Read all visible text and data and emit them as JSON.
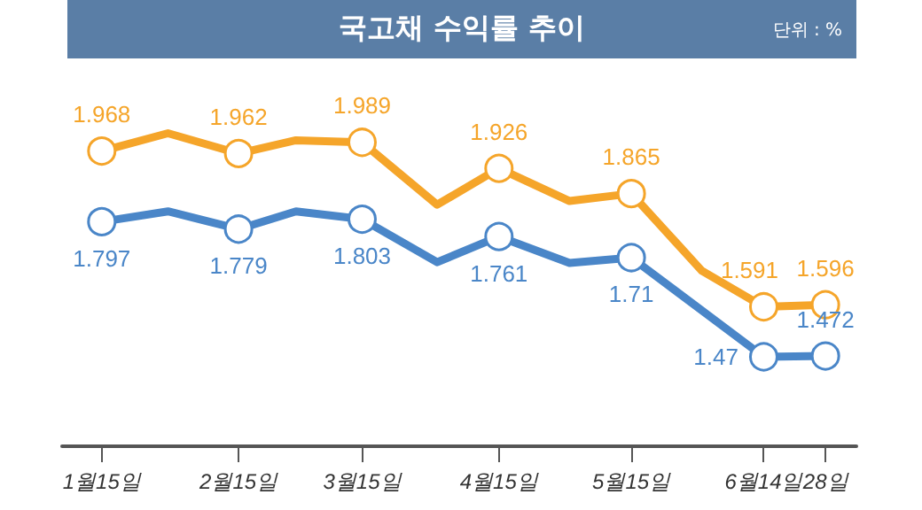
{
  "chart_data": {
    "type": "line",
    "title": "국고채 수익률 추이",
    "annotations": [
      "단위 : %"
    ],
    "x": [
      "--01-15",
      "--01-30",
      "--02-15",
      "--02-28",
      "--03-15",
      "--04-01",
      "--04-15",
      "--05-01",
      "--05-15",
      "--05-31",
      "--06-14",
      "--06-28"
    ],
    "xlim": [
      "--01-06",
      "--07-05"
    ],
    "xticks": [
      {
        "value": "--01-15",
        "label": "1월15일"
      },
      {
        "value": "--02-15",
        "label": "2월15일"
      },
      {
        "value": "--03-15",
        "label": "3월15일"
      },
      {
        "value": "--04-15",
        "label": "4월15일"
      },
      {
        "value": "--05-15",
        "label": "5월15일"
      },
      {
        "value": "--06-14",
        "label": "6월14일"
      },
      {
        "value": "--06-28",
        "label": "28일"
      }
    ],
    "tick_labels": "x",
    "grid": false,
    "marker": "circle",
    "line_style": "solid",
    "series": [
      {
        "color": "#f5a52a",
        "values": [
          1.968,
          2.011,
          1.962,
          1.994,
          1.989,
          1.838,
          1.926,
          1.847,
          1.865,
          1.678,
          1.591,
          1.596
        ],
        "value_labels": [
          "1.968",
          null,
          "1.962",
          null,
          "1.989",
          null,
          "1.926",
          null,
          "1.865",
          null,
          "1.591",
          "1.596"
        ]
      },
      {
        "color": "#4a86c8",
        "x": [
          "--01-15",
          "--01-30",
          "--02-15",
          "--02-28",
          "--03-15",
          "--04-01",
          "--04-15",
          "--05-01",
          "--05-15",
          "--06-14",
          "--06-28"
        ],
        "values": [
          1.797,
          1.822,
          1.779,
          1.822,
          1.803,
          1.699,
          1.761,
          1.697,
          1.71,
          1.47,
          1.472
        ],
        "value_labels": [
          "1.797",
          null,
          "1.779",
          null,
          "1.803",
          null,
          "1.761",
          null,
          "1.71",
          "1.47",
          "1.472"
        ]
      }
    ]
  }
}
